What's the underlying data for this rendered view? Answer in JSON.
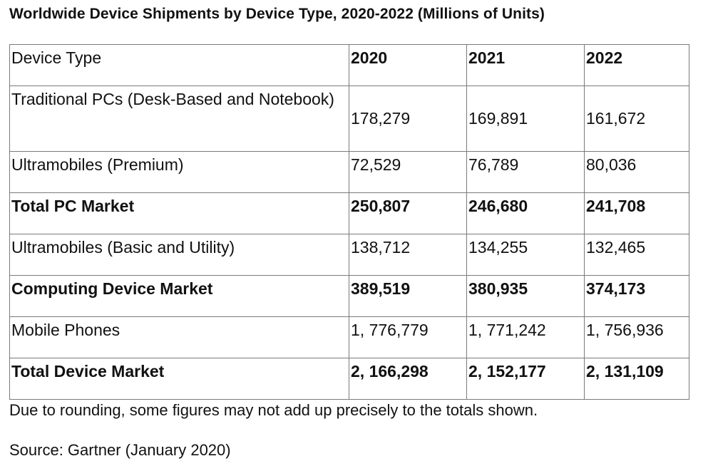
{
  "title": "Worldwide Device Shipments by Device Type, 2020-2022 (Millions of Units)",
  "table": {
    "header": [
      "Device Type",
      "2020",
      "2021",
      "2022"
    ],
    "rows": [
      {
        "label": "Traditional PCs (Desk-Based and Notebook)",
        "values": [
          "178,279",
          "169,891",
          "161,672"
        ]
      },
      {
        "label": "Ultramobiles (Premium)",
        "values": [
          "72,529",
          "76,789",
          "80,036"
        ]
      },
      {
        "label": "Total PC Market",
        "values": [
          "250,807",
          "246,680",
          "241,708"
        ]
      },
      {
        "label": "Ultramobiles (Basic and Utility)",
        "values": [
          "138,712",
          "134,255",
          "132,465"
        ]
      },
      {
        "label": "Computing Device Market",
        "values": [
          "389,519",
          "380,935",
          "374,173"
        ]
      },
      {
        "label": "Mobile Phones",
        "values": [
          "1, 776,779",
          "1, 771,242",
          "1, 756,936"
        ]
      },
      {
        "label": "Total Device Market",
        "values": [
          "2, 166,298",
          "2, 152,177",
          "2, 131,109"
        ]
      }
    ]
  },
  "note": "Due to rounding, some figures may not add up precisely to the totals shown.",
  "source": "Source: Gartner (January 2020)"
}
